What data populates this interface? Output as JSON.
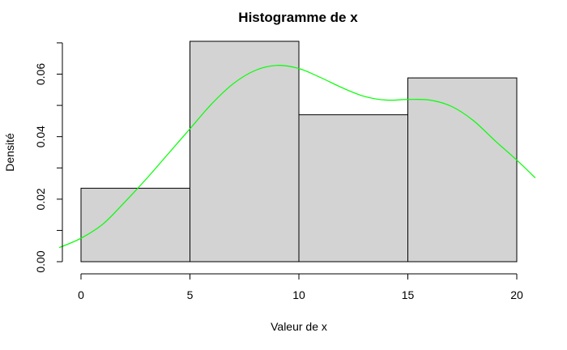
{
  "chart_data": {
    "type": "bar",
    "title": "Histogramme de x",
    "xlabel": "Valeur de x",
    "ylabel": "Densité",
    "xlim": [
      -1,
      21
    ],
    "ylim": [
      0,
      0.071
    ],
    "x_ticks": [
      0,
      5,
      10,
      15,
      20
    ],
    "y_ticks": [
      0.0,
      0.02,
      0.04,
      0.06
    ],
    "y_tick_labels": [
      "0.00",
      "0.02",
      "0.04",
      "0.06"
    ],
    "bins": [
      {
        "from": 0,
        "to": 5,
        "density": 0.0235
      },
      {
        "from": 5,
        "to": 10,
        "density": 0.0705
      },
      {
        "from": 10,
        "to": 15,
        "density": 0.047
      },
      {
        "from": 15,
        "to": 20,
        "density": 0.0588
      }
    ],
    "density_curve": {
      "x": [
        -1,
        0,
        1,
        2,
        3,
        4,
        5,
        6,
        7,
        8,
        9,
        10,
        11,
        12,
        13,
        14,
        15,
        16,
        17,
        18,
        19,
        20,
        20.85
      ],
      "y": [
        0.0045,
        0.0075,
        0.012,
        0.019,
        0.0265,
        0.0345,
        0.0425,
        0.0505,
        0.057,
        0.0612,
        0.0628,
        0.0618,
        0.0589,
        0.0556,
        0.0529,
        0.0517,
        0.0519,
        0.0517,
        0.0497,
        0.0452,
        0.0387,
        0.0325,
        0.0268
      ],
      "color": "#00ff00"
    },
    "bar_fill": "#d3d3d3",
    "grid": false
  }
}
